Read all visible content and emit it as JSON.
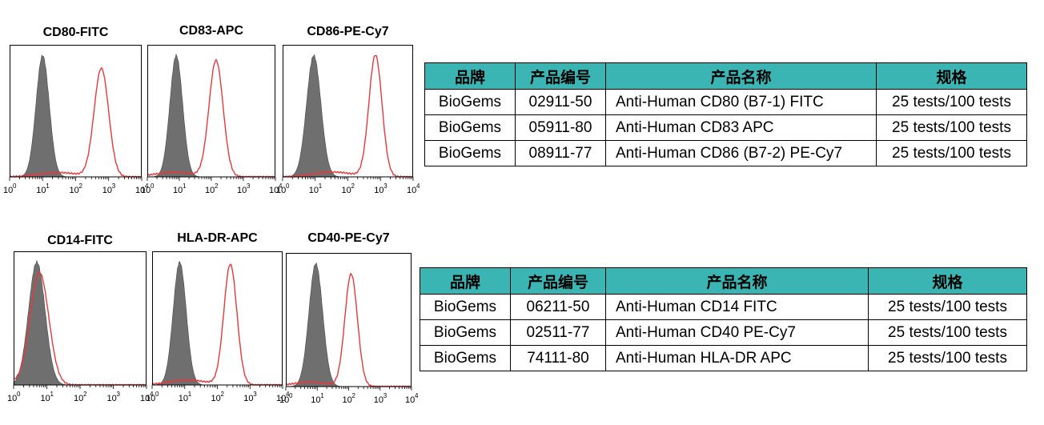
{
  "colors": {
    "isotype_fill": "#6f6f6f",
    "stain_line": "#e8383d",
    "table_header": "#3bb5b3"
  },
  "chart_data": [
    {
      "type": "histogram",
      "title": "CD80-FITC",
      "x_scale": "log",
      "xlim": [
        1,
        10000
      ],
      "x_ticks": [
        "10^0",
        "10^1",
        "10^2",
        "10^3",
        "10^4"
      ],
      "series": [
        {
          "style": "filled-gray",
          "peak_x": 10,
          "width_decades": 0.2
        },
        {
          "style": "red-line",
          "peak_x": 600,
          "width_decades": 0.22,
          "height_frac": 0.82
        }
      ]
    },
    {
      "type": "histogram",
      "title": "CD83-APC",
      "x_scale": "log",
      "xlim": [
        1,
        10000
      ],
      "x_ticks": [
        "10^0",
        "10^1",
        "10^2",
        "10^3",
        "10^4"
      ],
      "series": [
        {
          "style": "filled-gray",
          "peak_x": 8,
          "width_decades": 0.2
        },
        {
          "style": "red-line",
          "peak_x": 140,
          "width_decades": 0.22,
          "height_frac": 0.88
        }
      ]
    },
    {
      "type": "histogram",
      "title": "CD86-PE-Cy7",
      "x_scale": "log",
      "xlim": [
        1,
        10000
      ],
      "x_ticks": [
        "10^0",
        "10^1",
        "10^2",
        "10^3",
        "10^4"
      ],
      "series": [
        {
          "style": "filled-gray",
          "peak_x": 9,
          "width_decades": 0.22
        },
        {
          "style": "red-line",
          "peak_x": 700,
          "width_decades": 0.2,
          "height_frac": 0.92
        }
      ]
    },
    {
      "type": "histogram",
      "title": "CD14-FITC",
      "x_scale": "log",
      "xlim": [
        1,
        10000
      ],
      "x_ticks": [
        "10^0",
        "10^1",
        "10^2",
        "10^3",
        "10^4"
      ],
      "series": [
        {
          "style": "filled-gray",
          "peak_x": 5,
          "width_decades": 0.25
        },
        {
          "style": "red-line",
          "peak_x": 6,
          "width_decades": 0.28,
          "height_frac": 0.84
        }
      ]
    },
    {
      "type": "histogram",
      "title": "HLA-DR-APC",
      "x_scale": "log",
      "xlim": [
        1,
        10000
      ],
      "x_ticks": [
        "10^0",
        "10^1",
        "10^2",
        "10^3",
        "10^4"
      ],
      "series": [
        {
          "style": "filled-gray",
          "peak_x": 7,
          "width_decades": 0.2
        },
        {
          "style": "red-line",
          "peak_x": 250,
          "width_decades": 0.2,
          "height_frac": 0.9
        }
      ]
    },
    {
      "type": "histogram",
      "title": "CD40-PE-Cy7",
      "x_scale": "log",
      "xlim": [
        1,
        10000
      ],
      "x_ticks": [
        "10^0",
        "10^1",
        "10^2",
        "10^3",
        "10^4"
      ],
      "series": [
        {
          "style": "filled-gray",
          "peak_x": 9,
          "width_decades": 0.22
        },
        {
          "style": "red-line",
          "peak_x": 120,
          "width_decades": 0.2,
          "height_frac": 0.84
        }
      ]
    }
  ],
  "tables": [
    {
      "headers": [
        "品牌",
        "产品编号",
        "产品名称",
        "规格"
      ],
      "rows": [
        [
          "BioGems",
          "02911-50",
          "Anti-Human CD80 (B7-1) FITC",
          "25 tests/100 tests"
        ],
        [
          "BioGems",
          "05911-80",
          "Anti-Human CD83 APC",
          "25 tests/100 tests"
        ],
        [
          "BioGems",
          "08911-77",
          "Anti-Human CD86 (B7-2) PE-Cy7",
          "25 tests/100 tests"
        ]
      ]
    },
    {
      "headers": [
        "品牌",
        "产品编号",
        "产品名称",
        "规格"
      ],
      "rows": [
        [
          "BioGems",
          "06211-50",
          "Anti-Human CD14 FITC",
          "25 tests/100 tests"
        ],
        [
          "BioGems",
          "02511-77",
          "Anti-Human CD40 PE-Cy7",
          "25 tests/100 tests"
        ],
        [
          "BioGems",
          "74111-80",
          "Anti-Human HLA-DR APC",
          "25 tests/100 tests"
        ]
      ]
    }
  ]
}
